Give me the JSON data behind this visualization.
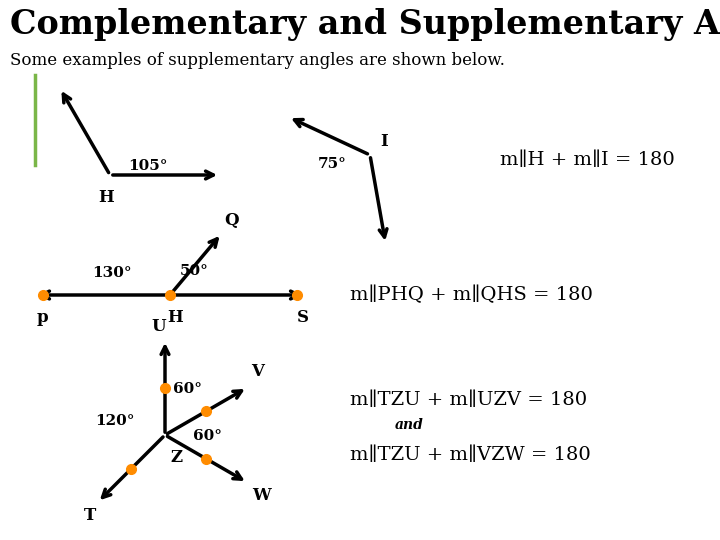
{
  "title": "Complementary and Supplementary Angles",
  "subtitle": "Some examples of supplementary angles are shown below.",
  "bg_color": "#ffffff",
  "title_color": "#000000",
  "green_color": "#7ab648",
  "orange_dot_color": "#ff8c00",
  "eq1": "m∥H + m∥I = 180",
  "eq2": "m∥PHQ + m∥QHS = 180",
  "eq3": "m∥TZU + m∥UZV = 180",
  "eq3b": "and",
  "eq4": "m∥TZU + m∥VZW = 180",
  "label_H1": "H",
  "label_I": "I",
  "label_105": "105°",
  "label_75": "75°",
  "label_P": "p",
  "label_Q": "Q",
  "label_S": "S",
  "label_H2": "H",
  "label_130": "130°",
  "label_50": "50°",
  "label_T": "T",
  "label_U": "U",
  "label_V": "V",
  "label_W": "W",
  "label_Z": "Z",
  "label_120": "120°",
  "label_60a": "60°",
  "label_60b": "60°"
}
